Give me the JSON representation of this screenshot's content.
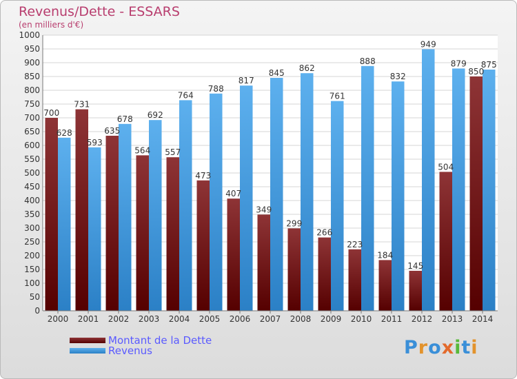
{
  "title": "Revenus/Dette - ESSARS",
  "subtitle": "(en milliers d'€)",
  "logo": "Proxiti",
  "colors": {
    "dette": "#7a1f22",
    "revenus": "#3d9be2",
    "title": "#b83d6e"
  },
  "chart_data": {
    "type": "bar",
    "categories": [
      "2000",
      "2001",
      "2002",
      "2003",
      "2004",
      "2005",
      "2006",
      "2007",
      "2008",
      "2009",
      "2010",
      "2011",
      "2012",
      "2013",
      "2014"
    ],
    "series": [
      {
        "name": "Montant de la Dette",
        "values": [
          700,
          731,
          635,
          564,
          557,
          473,
          407,
          349,
          299,
          266,
          223,
          184,
          145,
          504,
          850
        ]
      },
      {
        "name": "Revenus",
        "values": [
          628,
          593,
          678,
          692,
          764,
          788,
          817,
          845,
          862,
          761,
          888,
          832,
          949,
          879,
          875
        ]
      }
    ],
    "ylim": [
      0,
      1000
    ],
    "yticks": [
      0,
      50,
      100,
      150,
      200,
      250,
      300,
      350,
      400,
      450,
      500,
      550,
      600,
      650,
      700,
      750,
      800,
      850,
      900,
      950,
      1000
    ],
    "grid": true,
    "legend_position": "bottom-left"
  }
}
